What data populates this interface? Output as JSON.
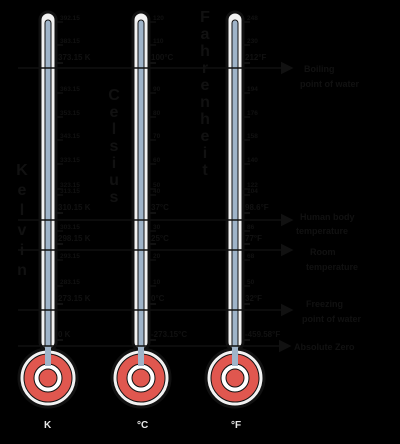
{
  "thermometers": [
    {
      "key": "kelvin",
      "scale_word": "Kelvin",
      "unit": "K",
      "ticks": [
        "392.15",
        "383.15",
        "373.15 K",
        "363.15",
        "353.15",
        "343.15",
        "333.15",
        "323.15",
        "313.15",
        "310.15 K",
        "303.15",
        "298.15 K",
        "293.15",
        "283.15",
        "273.15 K",
        "0 K"
      ],
      "tick_levels": [
        392.15,
        383.15,
        373.15,
        363.15,
        353.15,
        343.15,
        333.15,
        323.15,
        313.15,
        310.15,
        303.15,
        298.15,
        293.15,
        283.15,
        273.15,
        0
      ]
    },
    {
      "key": "celsius",
      "scale_word": "Celsius",
      "unit": "°C",
      "ticks": [
        "120",
        "110",
        "100°C",
        "90",
        "80",
        "70",
        "60",
        "50",
        "40",
        "37°C",
        "30",
        "25°C",
        "20",
        "10",
        "0°C",
        "-273.15°C"
      ],
      "tick_levels": [
        120,
        110,
        100,
        90,
        80,
        70,
        60,
        50,
        40,
        37,
        30,
        25,
        20,
        10,
        0,
        -273.15
      ]
    },
    {
      "key": "fahrenheit",
      "scale_word": "Fahrenheit",
      "unit": "°F",
      "ticks": [
        "248",
        "230",
        "212°F",
        "194",
        "176",
        "158",
        "140",
        "122",
        "104",
        "98.6°F",
        "86",
        "77°F",
        "68",
        "50",
        "32°F",
        "-459.58°F"
      ],
      "tick_levels": [
        248,
        230,
        212,
        194,
        176,
        158,
        140,
        122,
        104,
        98.6,
        86,
        77,
        68,
        50,
        32,
        -459.58
      ]
    }
  ],
  "annotations": [
    {
      "key": "boiling",
      "lines": [
        "Boiling",
        "point of water"
      ]
    },
    {
      "key": "body",
      "lines": [
        "Human body",
        "temperature"
      ]
    },
    {
      "key": "room",
      "lines": [
        "Room",
        "temperature"
      ]
    },
    {
      "key": "freezing",
      "lines": [
        "Freezing",
        "point of water"
      ]
    },
    {
      "key": "absolute",
      "lines": [
        "Absolute Zero"
      ]
    }
  ],
  "colors": {
    "tube_fill": "#f2f2f2",
    "outline": "#111111",
    "inner_tube": "#9fb4c9",
    "bulb_outer": "#e0574f",
    "bulb_ring": "#ffffff",
    "bulb_inner": "#e0574f",
    "background": "#000000"
  }
}
